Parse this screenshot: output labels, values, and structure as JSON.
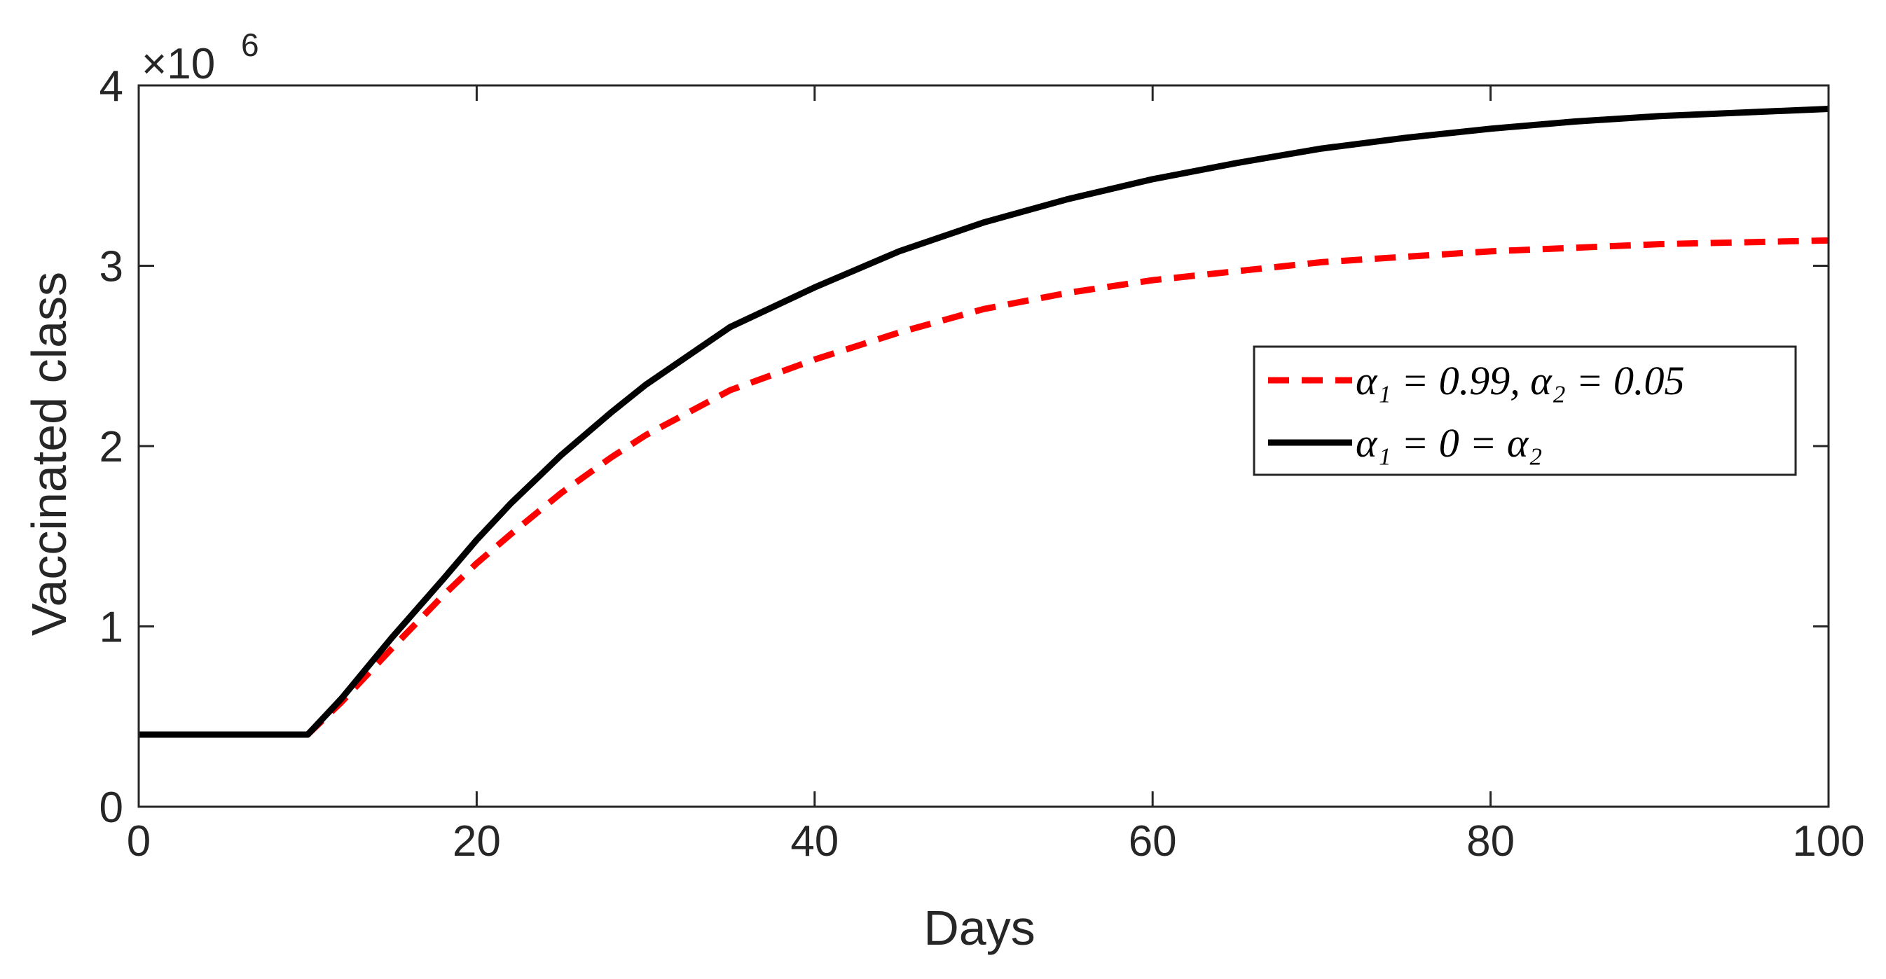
{
  "chart_data": {
    "type": "line",
    "xlabel": "Days",
    "ylabel": "Vaccinated class",
    "xlim": [
      0,
      100
    ],
    "ylim": [
      0,
      4000000
    ],
    "xticks": [
      0,
      20,
      40,
      60,
      80,
      100
    ],
    "yticks": [
      0,
      1000000,
      2000000,
      3000000,
      4000000
    ],
    "xtick_labels": [
      "0",
      "20",
      "40",
      "60",
      "80",
      "100"
    ],
    "ytick_labels": [
      "0",
      "1",
      "2",
      "3",
      "4"
    ],
    "y_exponent": {
      "base": "×10",
      "power": "6"
    },
    "grid": false,
    "legend_position": "right",
    "series": [
      {
        "name": "α₁ = 0.99,  α₂ = 0.05",
        "color": "#ff0000",
        "style": "dashed",
        "x": [
          0,
          10,
          12,
          15,
          18,
          20,
          22,
          25,
          28,
          30,
          35,
          40,
          45,
          50,
          55,
          60,
          65,
          70,
          75,
          80,
          85,
          90,
          95,
          100
        ],
        "y": [
          400000,
          400000,
          580000,
          880000,
          1170000,
          1350000,
          1510000,
          1740000,
          1940000,
          2060000,
          2310000,
          2480000,
          2630000,
          2760000,
          2850000,
          2920000,
          2970000,
          3020000,
          3050000,
          3080000,
          3100000,
          3120000,
          3130000,
          3140000
        ]
      },
      {
        "name": "α₁ = 0 = α₂",
        "color": "#000000",
        "style": "solid",
        "x": [
          0,
          10,
          12,
          15,
          18,
          20,
          22,
          25,
          28,
          30,
          35,
          40,
          45,
          50,
          55,
          60,
          65,
          70,
          75,
          80,
          85,
          90,
          95,
          100
        ],
        "y": [
          400000,
          400000,
          600000,
          940000,
          1260000,
          1480000,
          1680000,
          1950000,
          2190000,
          2340000,
          2660000,
          2880000,
          3080000,
          3240000,
          3370000,
          3480000,
          3570000,
          3650000,
          3710000,
          3760000,
          3800000,
          3830000,
          3850000,
          3870000
        ]
      }
    ]
  }
}
